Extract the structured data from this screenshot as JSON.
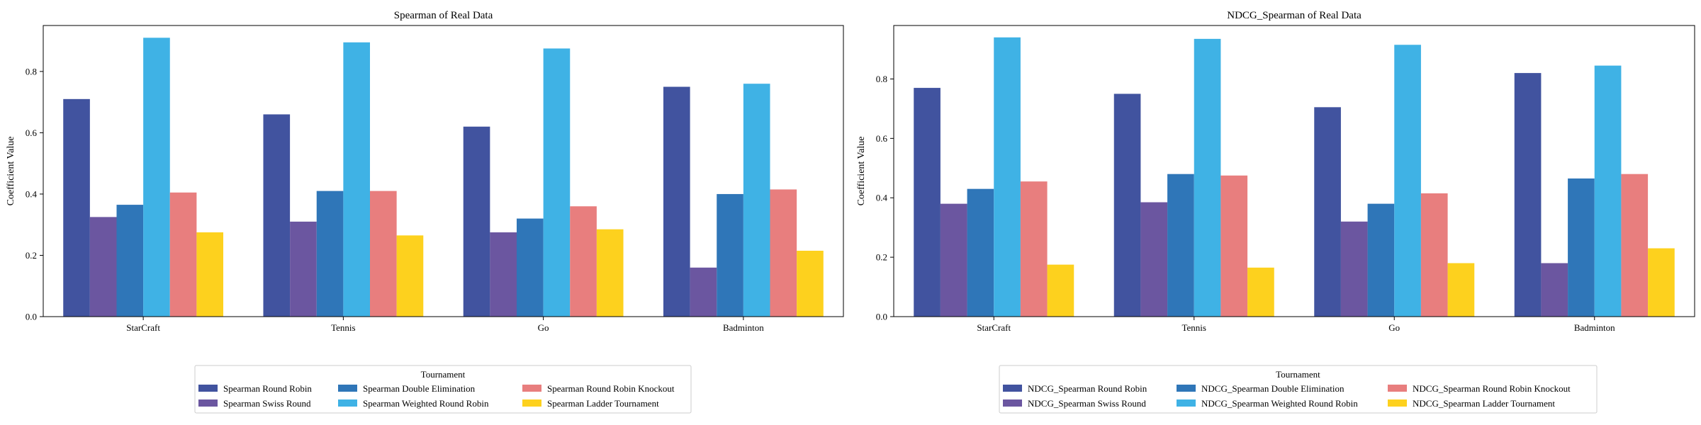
{
  "chart_data": [
    {
      "type": "bar",
      "title": "Spearman of Real Data",
      "xlabel": "",
      "ylabel": "Coefficient Value",
      "categories": [
        "StarCraft",
        "Tennis",
        "Go",
        "Badminton"
      ],
      "ylim": [
        0,
        0.95
      ],
      "yticks": [
        0.0,
        0.2,
        0.4,
        0.6,
        0.8
      ],
      "grid": false,
      "legend": {
        "title": "Tournament",
        "placement": "bottom-center",
        "columns": 3
      },
      "series": [
        {
          "name": "Spearman Round Robin",
          "color": "#41539f",
          "values": [
            0.71,
            0.66,
            0.62,
            0.75
          ]
        },
        {
          "name": "Spearman Swiss Round",
          "color": "#6b56a0",
          "values": [
            0.325,
            0.31,
            0.275,
            0.16
          ]
        },
        {
          "name": "Spearman Double Elimination",
          "color": "#2f76b8",
          "values": [
            0.365,
            0.41,
            0.32,
            0.4
          ]
        },
        {
          "name": "Spearman Weighted Round Robin",
          "color": "#3fb2e5",
          "values": [
            0.91,
            0.895,
            0.875,
            0.76
          ]
        },
        {
          "name": "Spearman Round Robin Knockout",
          "color": "#e87e7e",
          "values": [
            0.405,
            0.41,
            0.36,
            0.415
          ]
        },
        {
          "name": "Spearman Ladder Tournament",
          "color": "#fdd11e",
          "values": [
            0.275,
            0.265,
            0.285,
            0.215
          ]
        }
      ]
    },
    {
      "type": "bar",
      "title": "NDCG_Spearman of Real Data",
      "xlabel": "",
      "ylabel": "Coefficient Value",
      "categories": [
        "StarCraft",
        "Tennis",
        "Go",
        "Badminton"
      ],
      "ylim": [
        0,
        0.98
      ],
      "yticks": [
        0.0,
        0.2,
        0.4,
        0.6,
        0.8
      ],
      "grid": false,
      "legend": {
        "title": "Tournament",
        "placement": "bottom-center",
        "columns": 3
      },
      "series": [
        {
          "name": "NDCG_Spearman Round Robin",
          "color": "#41539f",
          "values": [
            0.77,
            0.75,
            0.705,
            0.82
          ]
        },
        {
          "name": "NDCG_Spearman Swiss Round",
          "color": "#6b56a0",
          "values": [
            0.38,
            0.385,
            0.32,
            0.18
          ]
        },
        {
          "name": "NDCG_Spearman Double Elimination",
          "color": "#2f76b8",
          "values": [
            0.43,
            0.48,
            0.38,
            0.465
          ]
        },
        {
          "name": "NDCG_Spearman Weighted Round Robin",
          "color": "#3fb2e5",
          "values": [
            0.94,
            0.935,
            0.915,
            0.845
          ]
        },
        {
          "name": "NDCG_Spearman Round Robin Knockout",
          "color": "#e87e7e",
          "values": [
            0.455,
            0.475,
            0.415,
            0.48
          ]
        },
        {
          "name": "NDCG_Spearman Ladder Tournament",
          "color": "#fdd11e",
          "values": [
            0.175,
            0.165,
            0.18,
            0.23
          ]
        }
      ]
    }
  ]
}
